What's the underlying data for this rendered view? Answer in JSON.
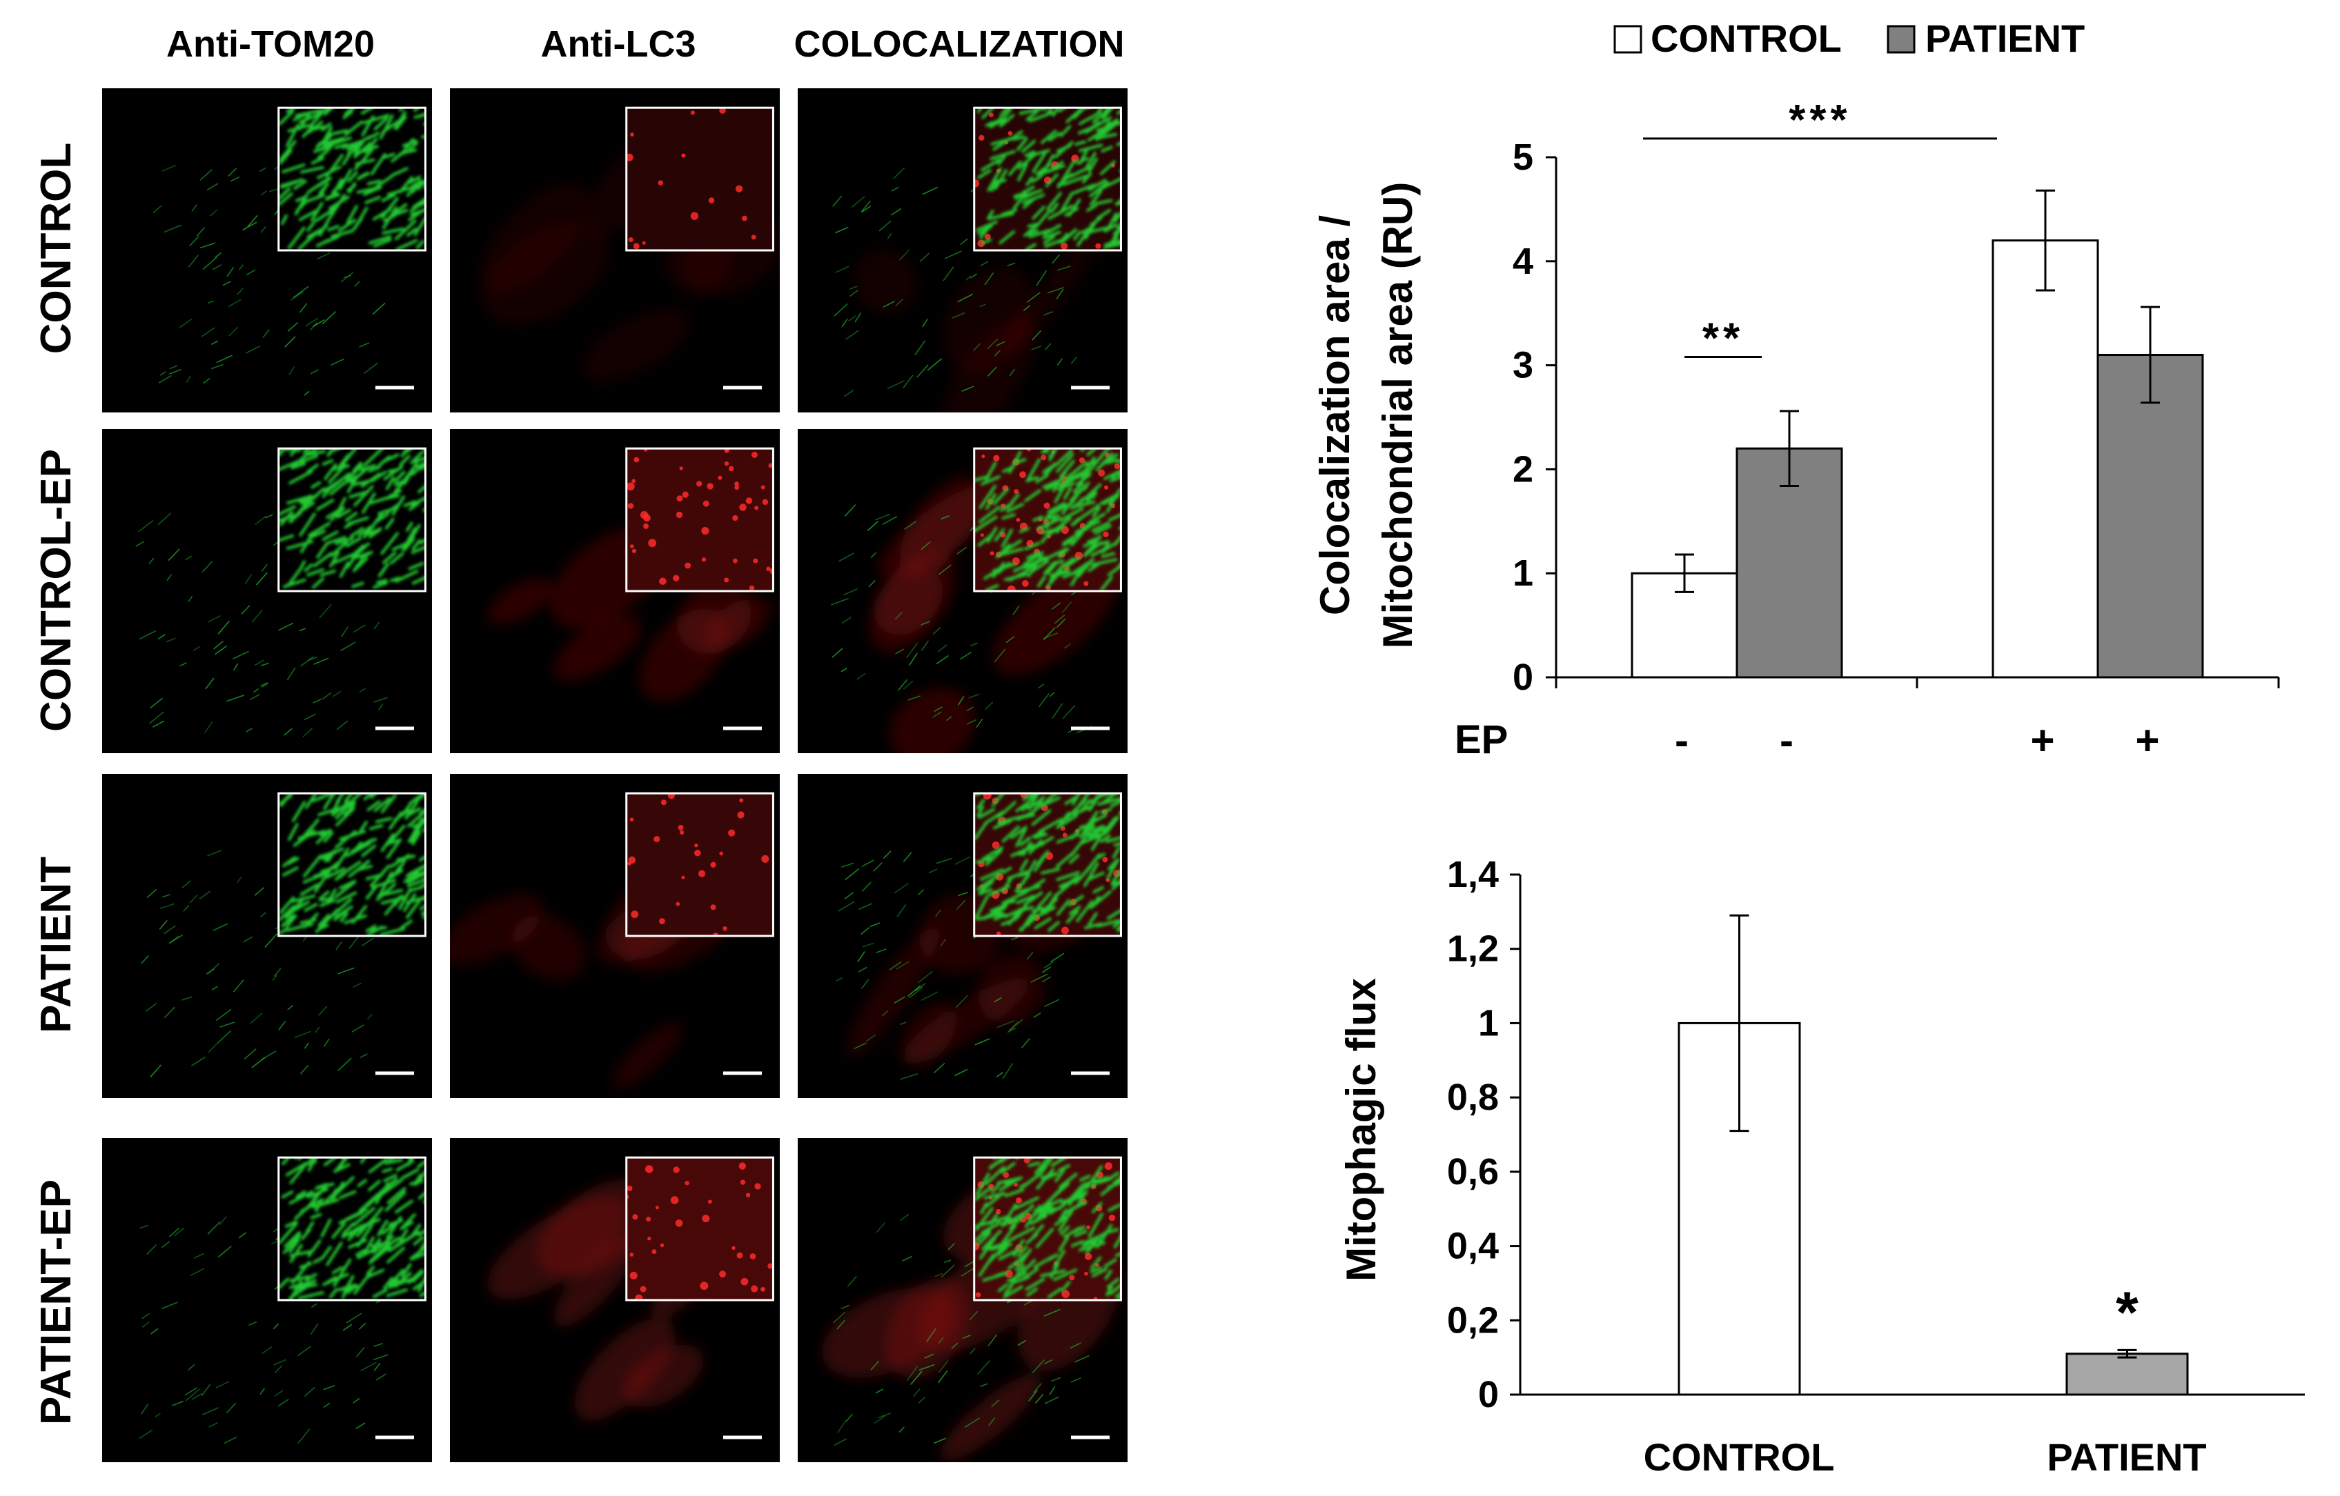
{
  "micrographs": {
    "columns": [
      "Anti-TOM20",
      "Anti-LC3",
      "COLOCALIZATION"
    ],
    "rows": [
      "CONTROL",
      "CONTROL-EP",
      "PATIENT",
      "PATIENT-EP"
    ],
    "colors": {
      "mitochondria": "#22c832",
      "lc3": "#d21e1e",
      "scalebar": "#ffffff",
      "background": "#000000"
    },
    "lc3_intensity": [
      0.25,
      0.75,
      0.55,
      0.9
    ],
    "lc3_puncta": [
      0.15,
      0.9,
      0.4,
      0.6
    ]
  },
  "chart_data": [
    {
      "type": "bar",
      "legend": [
        "CONTROL",
        "PATIENT"
      ],
      "legend_placement": "top",
      "series_colors": [
        "#ffffff",
        "#808080"
      ],
      "ylabel": [
        "Colocalization area /",
        "Mitochondrial area (RU)"
      ],
      "ylim": [
        0,
        5
      ],
      "yticks": [
        "0",
        "1",
        "2",
        "3",
        "4",
        "5"
      ],
      "ytick_values": [
        0,
        1,
        2,
        3,
        4,
        5
      ],
      "xaxis_title": "EP",
      "groups": [
        {
          "labels": [
            "-",
            "-"
          ],
          "values": [
            1.0,
            2.2
          ],
          "errors": [
            0.18,
            0.36
          ]
        },
        {
          "labels": [
            "+",
            "+"
          ],
          "values": [
            4.2,
            3.1
          ],
          "errors": [
            0.48,
            0.46
          ]
        }
      ],
      "significance": [
        {
          "text": "***",
          "from": [
            0,
            0
          ],
          "to": [
            1,
            0
          ],
          "y": 5.18
        },
        {
          "text": "**",
          "from": [
            0,
            0
          ],
          "to": [
            0,
            1
          ],
          "y": 3.08
        }
      ],
      "grid": false
    },
    {
      "type": "bar",
      "categories": [
        "CONTROL",
        "PATIENT"
      ],
      "values": [
        1.0,
        0.11
      ],
      "errors": [
        0.29,
        0.01
      ],
      "series_colors": [
        "#ffffff",
        "#a6a6a6"
      ],
      "ylabel": "Mitophagic flux",
      "ylim": [
        0,
        1.4
      ],
      "yticks": [
        "0",
        "0,2",
        "0,4",
        "0,6",
        "0,8",
        "1",
        "1,2",
        "1,4"
      ],
      "ytick_values": [
        0,
        0.2,
        0.4,
        0.6,
        0.8,
        1.0,
        1.2,
        1.4
      ],
      "annotations": [
        {
          "bar": 1,
          "text": "*"
        }
      ],
      "grid": false
    }
  ]
}
